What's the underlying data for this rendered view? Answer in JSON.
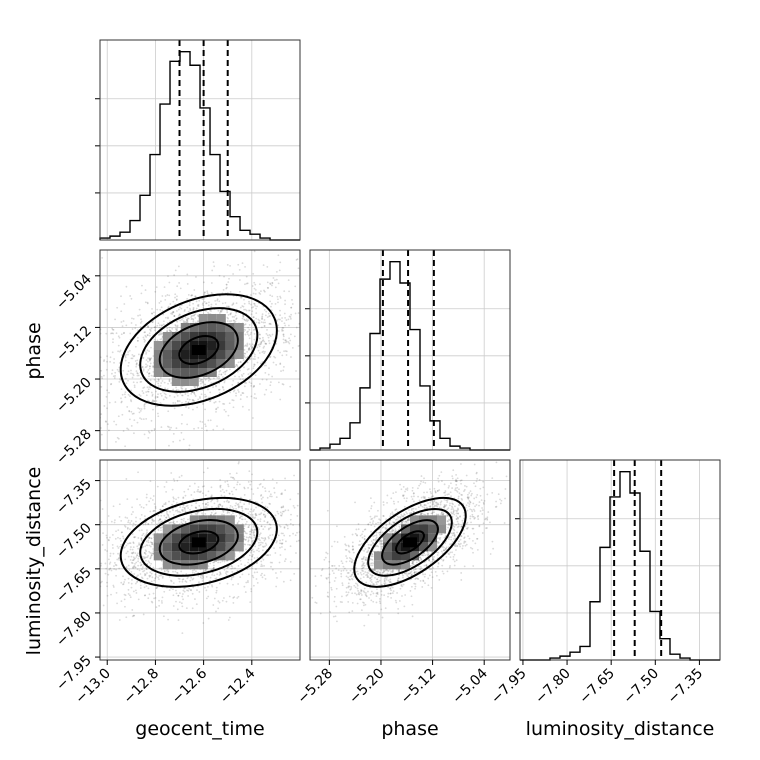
{
  "chart_data": {
    "type": "corner",
    "parameters": [
      "geocent_time",
      "phase",
      "luminosity_distance"
    ],
    "axis_labels": {
      "x": [
        "geocent_time",
        "phase",
        "luminosity_distance"
      ],
      "y": [
        "phase",
        "luminosity_distance"
      ]
    },
    "ranges": [
      [
        -13.03,
        -12.2
      ],
      [
        -5.31,
        -5.0
      ],
      [
        -7.96,
        -7.28
      ]
    ],
    "ticks": [
      {
        "values": [
          -13.0,
          -12.8,
          -12.6,
          -12.4
        ],
        "labels": [
          "−13.0",
          "−12.8",
          "−12.6",
          "−12.4"
        ]
      },
      {
        "values": [
          -5.28,
          -5.2,
          -5.12,
          -5.04
        ],
        "labels": [
          "−5.28",
          "−5.20",
          "−5.12",
          "−5.04"
        ]
      },
      {
        "values": [
          -7.95,
          -7.8,
          -7.65,
          -7.5,
          -7.35
        ],
        "labels": [
          "−7.95",
          "−7.80",
          "−7.65",
          "−7.50",
          "−7.35"
        ]
      }
    ],
    "quantiles": [
      [
        -12.7,
        -12.6,
        -12.5
      ],
      [
        -5.197,
        -5.158,
        -5.118
      ],
      [
        -7.64,
        -7.57,
        -7.48
      ]
    ],
    "histograms": [
      {
        "edges_start": -13.03,
        "bin_width": 0.04151,
        "counts": [
          0.01,
          0.02,
          0.04,
          0.1,
          0.23,
          0.44,
          0.7,
          0.92,
          0.97,
          0.9,
          0.68,
          0.44,
          0.25,
          0.12,
          0.05,
          0.03,
          0.01,
          0.0,
          0.0,
          0.0
        ]
      },
      {
        "edges_start": -5.31,
        "bin_width": 0.0155,
        "counts": [
          0.0,
          0.01,
          0.03,
          0.06,
          0.14,
          0.32,
          0.6,
          0.88,
          0.97,
          0.86,
          0.62,
          0.33,
          0.15,
          0.06,
          0.02,
          0.01,
          0.0,
          0.0,
          0.0,
          0.0
        ]
      },
      {
        "edges_start": -7.96,
        "bin_width": 0.034,
        "counts": [
          0.0,
          0.0,
          0.0,
          0.01,
          0.02,
          0.04,
          0.07,
          0.3,
          0.58,
          0.84,
          0.97,
          0.86,
          0.56,
          0.25,
          0.11,
          0.03,
          0.01,
          0.0,
          0.0,
          0.0
        ]
      }
    ],
    "pairs": [
      {
        "x_param": 0,
        "y_param": 1,
        "center": [
          -12.62,
          -5.155
        ],
        "sigma": [
          0.15,
          0.04
        ],
        "rho": 0.35
      },
      {
        "x_param": 0,
        "y_param": 2,
        "center": [
          -12.62,
          -7.56
        ],
        "sigma": [
          0.15,
          0.07
        ],
        "rho": 0.3
      },
      {
        "x_param": 1,
        "y_param": 2,
        "center": [
          -5.155,
          -7.56
        ],
        "sigma": [
          0.04,
          0.07
        ],
        "rho": 0.6
      }
    ],
    "contour_levels": [
      0.5,
      1.0,
      1.5,
      2.0
    ],
    "grid": true
  }
}
